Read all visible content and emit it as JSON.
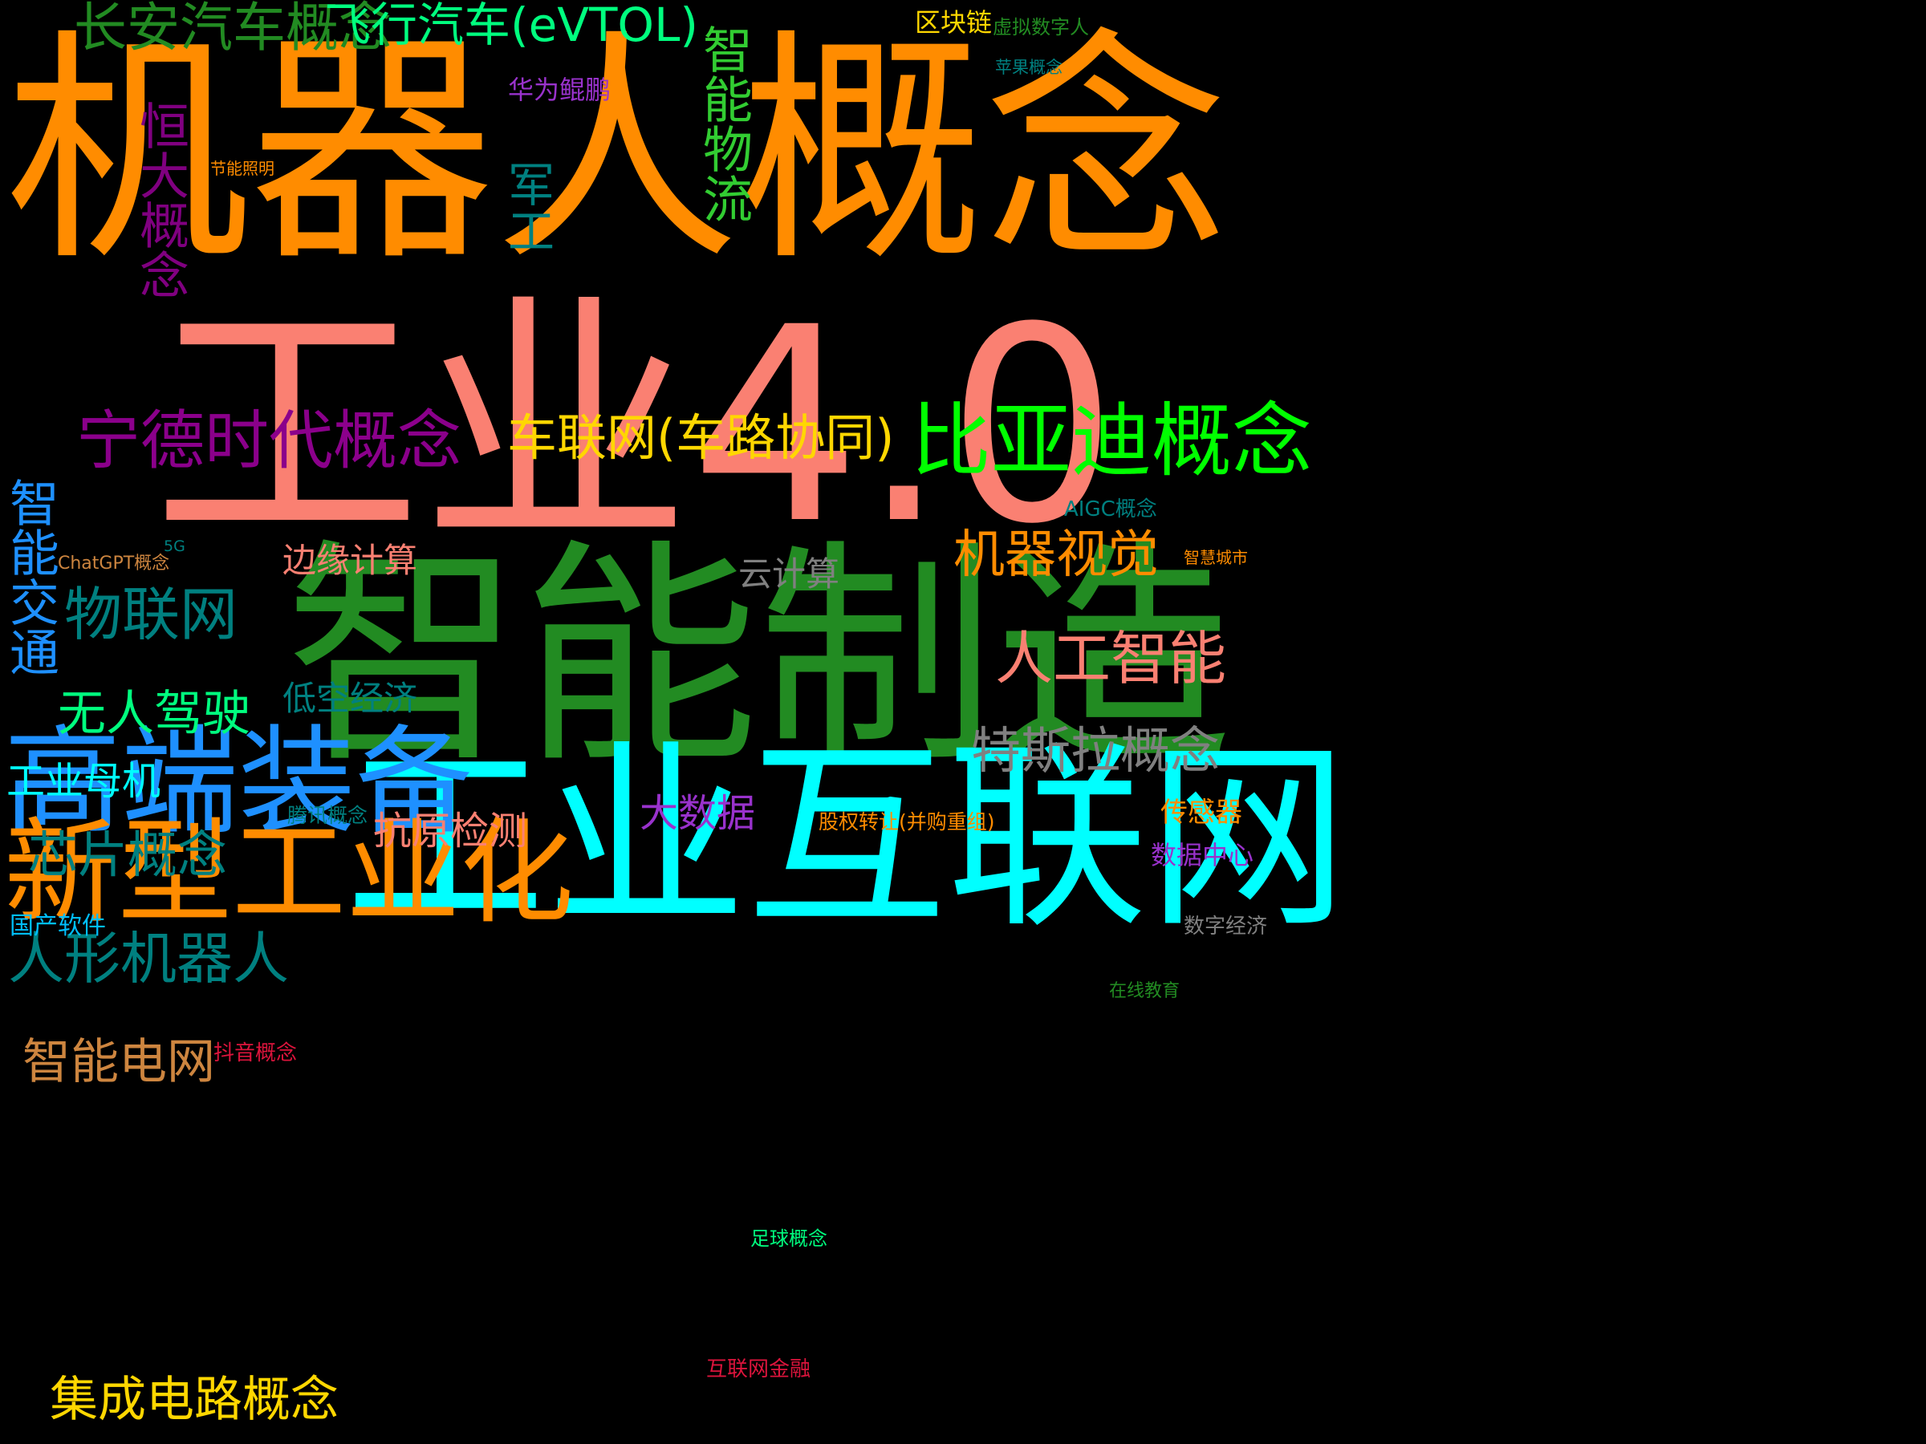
{
  "words": [
    {
      "text": "机器人概念",
      "color": "#ff8c00"
    },
    {
      "text": "工业4.0",
      "color": "#fa8072"
    },
    {
      "text": "智能制造",
      "color": "#228b22"
    },
    {
      "text": "工业互联网",
      "color": "#00ffff"
    },
    {
      "text": "高端装备",
      "color": "#1e90ff"
    },
    {
      "text": "新型工业化",
      "color": "#ff8c00"
    },
    {
      "text": "宁德时代概念",
      "color": "#8b008b"
    },
    {
      "text": "比亚迪概念",
      "color": "#00ff00"
    },
    {
      "text": "车联网(车路协同)",
      "color": "#ffd700"
    },
    {
      "text": "长安汽车概念",
      "color": "#228b22"
    },
    {
      "text": "飞行汽车(eVTOL)",
      "color": "#00ff7f"
    },
    {
      "text": "恒大概念",
      "color": "#800080"
    },
    {
      "text": "军工",
      "color": "#008080"
    },
    {
      "text": "智能物流",
      "color": "#32cd32"
    },
    {
      "text": "机器视觉",
      "color": "#ff8c00"
    },
    {
      "text": "人工智能",
      "color": "#fa8072"
    },
    {
      "text": "特斯拉概念",
      "color": "#808080"
    },
    {
      "text": "物联网",
      "color": "#008080"
    },
    {
      "text": "无人驾驶",
      "color": "#00ff7f"
    },
    {
      "text": "智能交通",
      "color": "#1e90ff"
    },
    {
      "text": "低空经济",
      "color": "#008080"
    },
    {
      "text": "边缘计算",
      "color": "#fa8072"
    },
    {
      "text": "云计算",
      "color": "#808080"
    },
    {
      "text": "芯片概念",
      "color": "#008080"
    },
    {
      "text": "人形机器人",
      "color": "#008080"
    },
    {
      "text": "智能电网",
      "color": "#cd853f"
    },
    {
      "text": "集成电路概念",
      "color": "#ffd700"
    },
    {
      "text": "工业母机",
      "color": "#00ffff"
    },
    {
      "text": "抗原检测",
      "color": "#fa8072"
    },
    {
      "text": "大数据",
      "color": "#9932cc"
    },
    {
      "text": "区块链",
      "color": "#ffd700"
    },
    {
      "text": "虚拟数字人",
      "color": "#228b22"
    },
    {
      "text": "苹果概念",
      "color": "#008080"
    },
    {
      "text": "华为鲲鹏",
      "color": "#9932cc"
    },
    {
      "text": "节能照明",
      "color": "#ff8c00"
    },
    {
      "text": "AIGC概念",
      "color": "#008080"
    },
    {
      "text": "ChatGPT概念",
      "color": "#cd853f"
    },
    {
      "text": "5G",
      "color": "#008080"
    },
    {
      "text": "智慧城市",
      "color": "#ff8c00"
    },
    {
      "text": "腾讯概念",
      "color": "#008080"
    },
    {
      "text": "股权转让(并购重组)",
      "color": "#ff8c00"
    },
    {
      "text": "传感器",
      "color": "#ff8c00"
    },
    {
      "text": "数据中心",
      "color": "#9932cc"
    },
    {
      "text": "数字经济",
      "color": "#808080"
    },
    {
      "text": "在线教育",
      "color": "#228b22"
    },
    {
      "text": "国产软件",
      "color": "#00bfff"
    },
    {
      "text": "抖音概念",
      "color": "#dc143c"
    },
    {
      "text": "足球概念",
      "color": "#00ff7f"
    },
    {
      "text": "互联网金融",
      "color": "#dc143c"
    }
  ]
}
